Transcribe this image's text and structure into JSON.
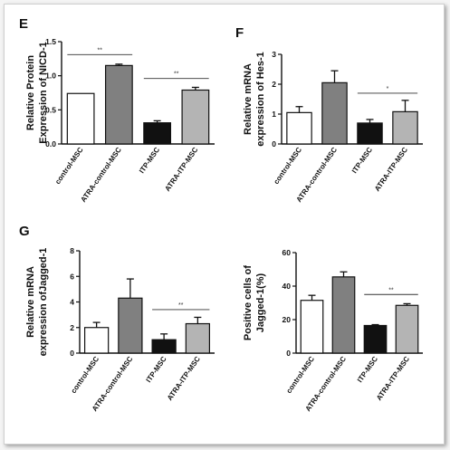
{
  "chart_data": [
    {
      "panel": "E",
      "type": "bar",
      "ylabel": [
        "Relative Protein",
        "Expression of NICD-1"
      ],
      "categories": [
        "control-MSC",
        "ATRA-control-MSC",
        "ITP-MSC",
        "ATRA-ITP-MSC"
      ],
      "values": [
        0.74,
        1.15,
        0.31,
        0.79
      ],
      "errors": [
        0.0,
        0.02,
        0.03,
        0.04
      ],
      "ylim": [
        0,
        1.5
      ],
      "yticks": [
        "0.0",
        "0.5",
        "1.0",
        "1.5"
      ],
      "significance": [
        {
          "from": 0,
          "to": 1,
          "label": "**",
          "y": 1.31
        },
        {
          "from": 2,
          "to": 3,
          "label": "**",
          "y": 0.96
        }
      ]
    },
    {
      "panel": "F",
      "type": "bar",
      "ylabel": [
        "Relative mRNA",
        "expression of Hes-1"
      ],
      "categories": [
        "control-MSC",
        "ATRA-control-MSC",
        "ITP-MSC",
        "ATRA-ITP-MSC"
      ],
      "values": [
        1.05,
        2.05,
        0.7,
        1.08
      ],
      "errors": [
        0.2,
        0.4,
        0.12,
        0.38
      ],
      "ylim": [
        0,
        3
      ],
      "yticks": [
        "0",
        "1",
        "2",
        "3"
      ],
      "significance": [
        {
          "from": 2,
          "to": 3,
          "label": "*",
          "y": 1.7
        }
      ]
    },
    {
      "panel": "G",
      "type": "bar",
      "ylabel": [
        "Relative mRNA",
        "expression ofJagged-1"
      ],
      "categories": [
        "control-MSC",
        "ATRA-control-MSC",
        "ITP-MSC",
        "ATRA-ITP-MSC"
      ],
      "values": [
        2.0,
        4.3,
        1.05,
        2.3
      ],
      "errors": [
        0.4,
        1.5,
        0.45,
        0.5
      ],
      "ylim": [
        0,
        8
      ],
      "yticks": [
        "0",
        "2",
        "4",
        "6",
        "8"
      ],
      "significance": [
        {
          "from": 2,
          "to": 3,
          "label": "**",
          "y": 3.4
        }
      ]
    },
    {
      "panel": "",
      "type": "bar",
      "ylabel": [
        "Positive cells of",
        "Jagged-1(%)"
      ],
      "categories": [
        "control-MSC",
        "ATRA-control-MSC",
        "ITP-MSC",
        "ATRA-ITP-MSC"
      ],
      "values": [
        31.5,
        45.5,
        16.5,
        28.5
      ],
      "errors": [
        3,
        3,
        0.5,
        1
      ],
      "ylim": [
        0,
        60
      ],
      "yticks": [
        "0",
        "20",
        "40",
        "60"
      ],
      "significance": [
        {
          "from": 2,
          "to": 3,
          "label": "**",
          "y": 35
        }
      ]
    }
  ],
  "colors": {
    "control-MSC": "#ffffff",
    "ATRA-control-MSC": "#808080",
    "ITP-MSC": "#111111",
    "ATRA-ITP-MSC": "#b4b4b4",
    "axis": "#111111"
  }
}
